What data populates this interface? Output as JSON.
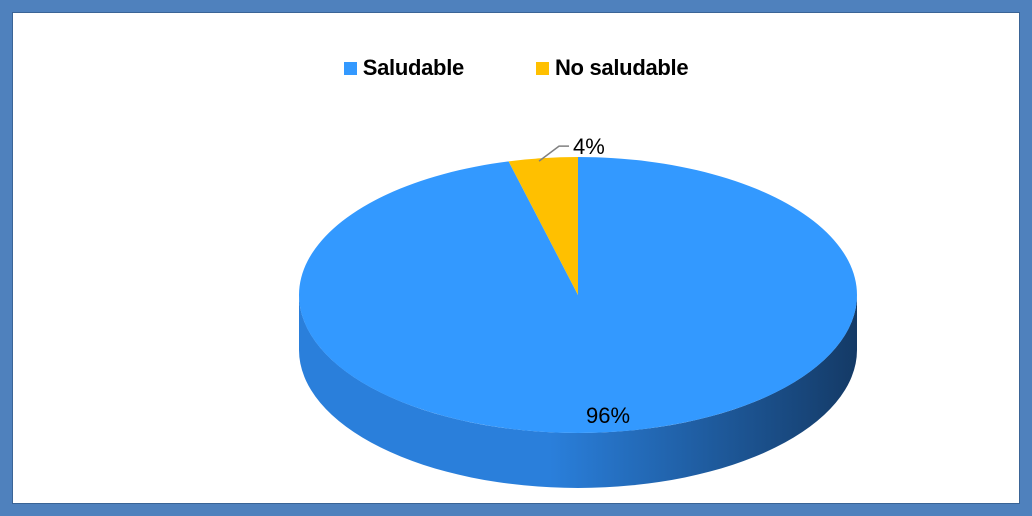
{
  "chart_data": {
    "type": "pie",
    "three_d": true,
    "legend_position": "top",
    "slices": [
      {
        "name": "Saludable",
        "value": 96,
        "label": "96%",
        "color": "#3399ff",
        "dark_color": "#143a66",
        "mid_color": "#2a7fdb"
      },
      {
        "name": "No saludable",
        "value": 4,
        "label": "4%",
        "color": "#ffc000",
        "dark_color": "#b38600",
        "mid_color": "#e6ad00"
      }
    ]
  }
}
